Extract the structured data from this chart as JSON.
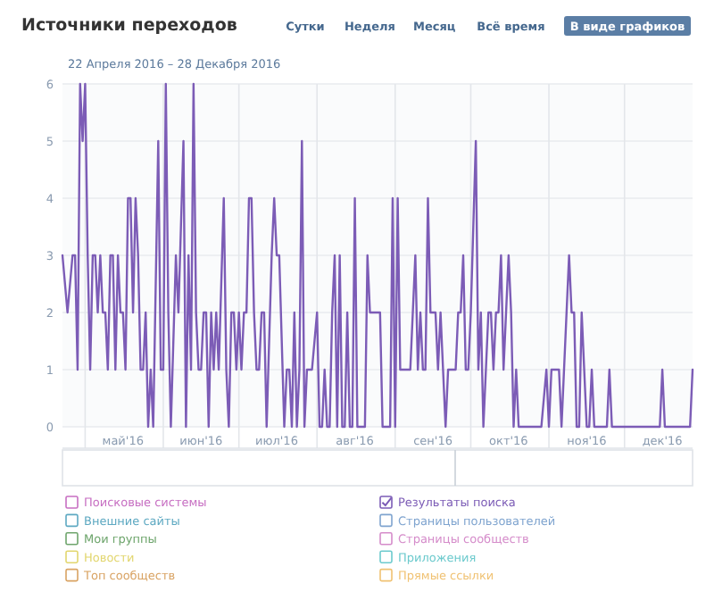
{
  "chart_data": {
    "type": "line",
    "title": "Источники переходов",
    "subtitle": "22 Апреля 2016 – 28 Декабря 2016",
    "annotations": [
      "Сутки",
      "Неделя",
      "Месяц",
      "Всё время",
      "В виде графиков"
    ],
    "xlim": [
      "2016-04-22",
      "2016-12-28"
    ],
    "xticks": [
      {
        "value": "2016-05-01",
        "label": null
      },
      {
        "value": "2016-05-16",
        "label": "май'16"
      },
      {
        "value": "2016-06-01",
        "label": null
      },
      {
        "value": "2016-06-16",
        "label": "июн'16"
      },
      {
        "value": "2016-07-01",
        "label": null
      },
      {
        "value": "2016-07-16",
        "label": "июл'16"
      },
      {
        "value": "2016-08-01",
        "label": null
      },
      {
        "value": "2016-08-16",
        "label": "авг'16"
      },
      {
        "value": "2016-09-01",
        "label": null
      },
      {
        "value": "2016-09-16",
        "label": "сен'16"
      },
      {
        "value": "2016-10-01",
        "label": null
      },
      {
        "value": "2016-10-16",
        "label": "окт'16"
      },
      {
        "value": "2016-11-01",
        "label": null
      },
      {
        "value": "2016-11-16",
        "label": "ноя'16"
      },
      {
        "value": "2016-12-01",
        "label": null
      },
      {
        "value": "2016-12-16",
        "label": "дек'16"
      }
    ],
    "ylim": [
      0,
      6
    ],
    "yticks": [
      0,
      1,
      2,
      3,
      4,
      5,
      6
    ],
    "grid": true,
    "legend": "bottom",
    "marker": "none",
    "line_style": "solid",
    "series": [
      {
        "name": "Поисковые системы",
        "color": "#c76fc2"
      },
      {
        "name": "Внешние сайты",
        "color": "#5ea9c2"
      },
      {
        "name": "Мои группы",
        "color": "#6ea56c"
      },
      {
        "name": "Новости",
        "color": "#e2d66e"
      },
      {
        "name": "Топ сообществ",
        "color": "#d9a363"
      },
      {
        "name": "Результаты поиска",
        "color": "#7c5cb6",
        "x": [
          "2016-04-22",
          "2016-04-24",
          "2016-04-26",
          "2016-04-27",
          "2016-04-28",
          "2016-04-29",
          "2016-04-30",
          "2016-05-01",
          "2016-05-02",
          "2016-05-03",
          "2016-05-04",
          "2016-05-05",
          "2016-05-06",
          "2016-05-07",
          "2016-05-08",
          "2016-05-09",
          "2016-05-10",
          "2016-05-11",
          "2016-05-12",
          "2016-05-13",
          "2016-05-14",
          "2016-05-15",
          "2016-05-16",
          "2016-05-17",
          "2016-05-18",
          "2016-05-19",
          "2016-05-20",
          "2016-05-21",
          "2016-05-22",
          "2016-05-23",
          "2016-05-24",
          "2016-05-25",
          "2016-05-26",
          "2016-05-27",
          "2016-05-28",
          "2016-05-30",
          "2016-05-31",
          "2016-06-01",
          "2016-06-02",
          "2016-06-03",
          "2016-06-04",
          "2016-06-06",
          "2016-06-07",
          "2016-06-09",
          "2016-06-10",
          "2016-06-11",
          "2016-06-12",
          "2016-06-13",
          "2016-06-14",
          "2016-06-15",
          "2016-06-16",
          "2016-06-17",
          "2016-06-18",
          "2016-06-19",
          "2016-06-20",
          "2016-06-21",
          "2016-06-22",
          "2016-06-23",
          "2016-06-25",
          "2016-06-26",
          "2016-06-27",
          "2016-06-28",
          "2016-06-29",
          "2016-06-30",
          "2016-07-01",
          "2016-07-02",
          "2016-07-03",
          "2016-07-04",
          "2016-07-05",
          "2016-07-06",
          "2016-07-07",
          "2016-07-08",
          "2016-07-09",
          "2016-07-10",
          "2016-07-11",
          "2016-07-12",
          "2016-07-14",
          "2016-07-15",
          "2016-07-16",
          "2016-07-17",
          "2016-07-19",
          "2016-07-20",
          "2016-07-21",
          "2016-07-22",
          "2016-07-23",
          "2016-07-24",
          "2016-07-25",
          "2016-07-26",
          "2016-07-27",
          "2016-07-28",
          "2016-07-29",
          "2016-07-30",
          "2016-08-01",
          "2016-08-02",
          "2016-08-03",
          "2016-08-04",
          "2016-08-05",
          "2016-08-06",
          "2016-08-07",
          "2016-08-08",
          "2016-08-09",
          "2016-08-10",
          "2016-08-11",
          "2016-08-12",
          "2016-08-13",
          "2016-08-14",
          "2016-08-15",
          "2016-08-16",
          "2016-08-17",
          "2016-08-20",
          "2016-08-21",
          "2016-08-22",
          "2016-08-23",
          "2016-08-25",
          "2016-08-26",
          "2016-08-27",
          "2016-08-29",
          "2016-08-30",
          "2016-08-31",
          "2016-09-01",
          "2016-09-02",
          "2016-09-03",
          "2016-09-05",
          "2016-09-06",
          "2016-09-07",
          "2016-09-09",
          "2016-09-10",
          "2016-09-11",
          "2016-09-12",
          "2016-09-13",
          "2016-09-14",
          "2016-09-15",
          "2016-09-17",
          "2016-09-18",
          "2016-09-19",
          "2016-09-20",
          "2016-09-21",
          "2016-09-22",
          "2016-09-23",
          "2016-09-24",
          "2016-09-25",
          "2016-09-26",
          "2016-09-27",
          "2016-09-28",
          "2016-09-29",
          "2016-09-30",
          "2016-10-01",
          "2016-10-03",
          "2016-10-04",
          "2016-10-05",
          "2016-10-06",
          "2016-10-08",
          "2016-10-09",
          "2016-10-10",
          "2016-10-11",
          "2016-10-12",
          "2016-10-13",
          "2016-10-14",
          "2016-10-15",
          "2016-10-16",
          "2016-10-17",
          "2016-10-18",
          "2016-10-19",
          "2016-10-20",
          "2016-10-29",
          "2016-10-31",
          "2016-11-01",
          "2016-11-02",
          "2016-11-04",
          "2016-11-05",
          "2016-11-06",
          "2016-11-08",
          "2016-11-09",
          "2016-11-10",
          "2016-11-11",
          "2016-11-12",
          "2016-11-13",
          "2016-11-14",
          "2016-11-16",
          "2016-11-17",
          "2016-11-18",
          "2016-11-19",
          "2016-11-24",
          "2016-11-25",
          "2016-11-26",
          "2016-12-15",
          "2016-12-16",
          "2016-12-17",
          "2016-12-27",
          "2016-12-28"
        ],
        "values": [
          3,
          2,
          3,
          3,
          1,
          6,
          5,
          6,
          3,
          1,
          3,
          3,
          2,
          3,
          2,
          2,
          1,
          3,
          3,
          1,
          3,
          2,
          2,
          1,
          4,
          4,
          2,
          4,
          3,
          1,
          1,
          2,
          0,
          1,
          0,
          5,
          1,
          1,
          6,
          2,
          0,
          3,
          2,
          5,
          0,
          3,
          1,
          6,
          2,
          1,
          1,
          2,
          2,
          0,
          2,
          1,
          2,
          1,
          4,
          1,
          0,
          2,
          2,
          1,
          2,
          1,
          2,
          2,
          4,
          4,
          2,
          1,
          1,
          2,
          2,
          0,
          3,
          4,
          3,
          3,
          0,
          1,
          1,
          0,
          2,
          0,
          1,
          5,
          0,
          1,
          1,
          1,
          2,
          0,
          0,
          1,
          0,
          0,
          2,
          3,
          0,
          3,
          0,
          0,
          2,
          0,
          0,
          4,
          0,
          0,
          3,
          2,
          2,
          2,
          2,
          0,
          0,
          0,
          4,
          0,
          4,
          1,
          1,
          1,
          1,
          3,
          1,
          2,
          1,
          1,
          4,
          2,
          2,
          1,
          2,
          1,
          0,
          1,
          1,
          1,
          1,
          2,
          2,
          3,
          1,
          1,
          2,
          5,
          1,
          2,
          0,
          2,
          2,
          1,
          2,
          2,
          3,
          1,
          2,
          3,
          2,
          0,
          1,
          0,
          0,
          1,
          0,
          1,
          1,
          1,
          0,
          2,
          3,
          2,
          2,
          0,
          0,
          2,
          0,
          0,
          1,
          0,
          0,
          1,
          0,
          0,
          1,
          0,
          0,
          1
        ]
      },
      {
        "name": "Страницы пользователей",
        "color": "#7fa4cf"
      },
      {
        "name": "Страницы сообществ",
        "color": "#d58cca"
      },
      {
        "name": "Приложения",
        "color": "#6ccacd"
      },
      {
        "name": "Прямые ссылки",
        "color": "#f0c273"
      }
    ]
  }
}
